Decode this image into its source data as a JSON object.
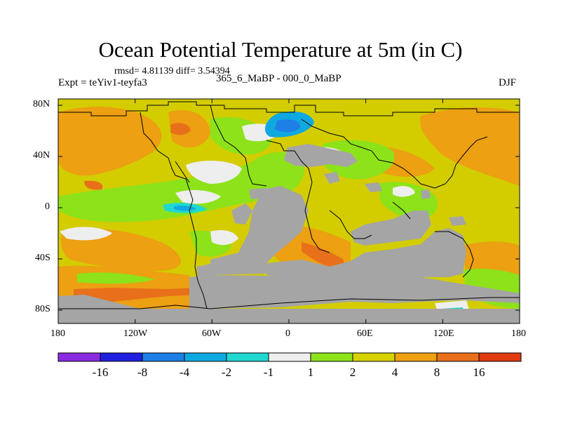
{
  "title": "Ocean Potential Temperature at 5m (in C)",
  "stats": "rmsd= 4.81139 diff= 3.54394",
  "experiment": "Expt = teYiv1-teyfa3",
  "periods": "365_6_MaBP - 000_0_MaBP",
  "season": "DJF",
  "lat_ticks": [
    "80N",
    "40N",
    "0",
    "40S",
    "80S"
  ],
  "lon_ticks": [
    "180",
    "120W",
    "60W",
    "0",
    "60E",
    "120E",
    "180"
  ],
  "colorbar": {
    "labels": [
      "-16",
      "-8",
      "-4",
      "-2",
      "-1",
      "1",
      "2",
      "4",
      "8",
      "16"
    ],
    "colors": [
      "#8a2be2",
      "#2020e0",
      "#1e7fe6",
      "#10a8e0",
      "#20d8d0",
      "#eeeeee",
      "#8de21a",
      "#d6d200",
      "#eca012",
      "#e8701a",
      "#e03a10"
    ]
  },
  "colors": {
    "land": "#a5a5a5",
    "ocean_background": "#d3cd00",
    "coast_line": "#000000"
  }
}
